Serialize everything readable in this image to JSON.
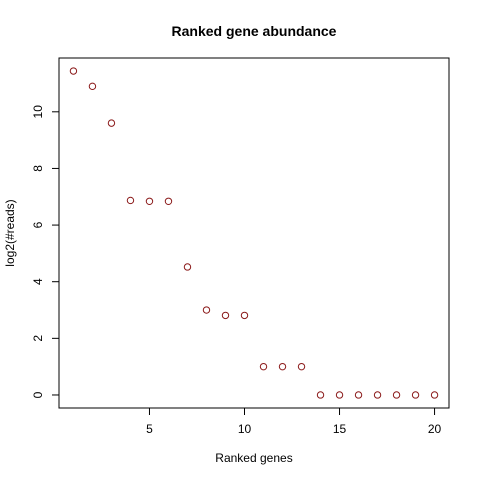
{
  "chart_data": {
    "type": "scatter",
    "title": "Ranked gene abundance",
    "xlabel": "Ranked genes",
    "ylabel": "log2(#reads)",
    "xlim": [
      0.24,
      20.76
    ],
    "ylim": [
      -0.46,
      11.9
    ],
    "x_ticks": [
      5,
      10,
      15,
      20
    ],
    "y_ticks": [
      0,
      2,
      4,
      6,
      8,
      10
    ],
    "grid": false,
    "legend": "none",
    "point_color": "#8b1a1a",
    "series": [
      {
        "x": [
          1,
          2,
          3,
          4,
          5,
          6,
          7,
          8,
          9,
          10,
          11,
          12,
          13,
          14,
          15,
          16,
          17,
          18,
          19,
          20
        ],
        "values": [
          11.44,
          10.9,
          9.6,
          6.87,
          6.84,
          6.84,
          4.52,
          3.0,
          2.81,
          2.81,
          1.0,
          1.0,
          1.0,
          0,
          0,
          0,
          0,
          0,
          0,
          0
        ]
      }
    ]
  }
}
